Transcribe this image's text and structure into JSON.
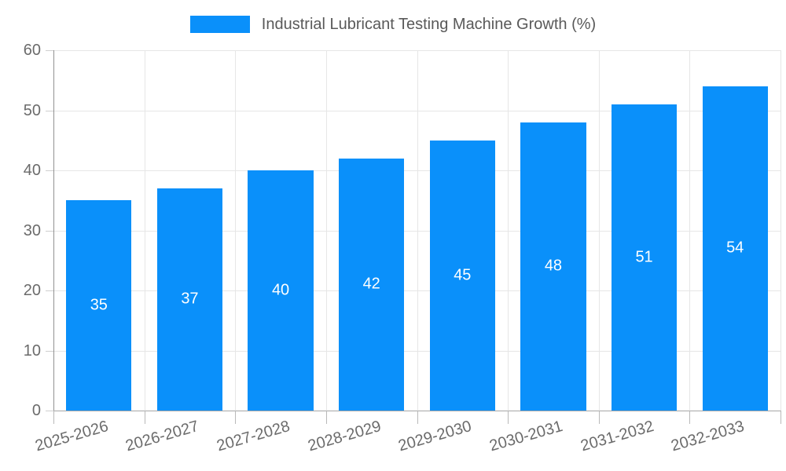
{
  "colors": {
    "bar": "#0a90fa",
    "grid": "#e6e6e6",
    "axis_border": "#9a9a9a",
    "tick_text": "#6b6b6b",
    "legend_text": "#595959",
    "value_label_text": "#ffffff",
    "background": "#ffffff"
  },
  "legend": {
    "label": "Industrial Lubricant Testing Machine Growth (%)"
  },
  "chart_data": {
    "type": "bar",
    "title": "Industrial Lubricant Testing Machine Growth (%)",
    "categories": [
      "2025-2026",
      "2026-2027",
      "2027-2028",
      "2028-2029",
      "2029-2030",
      "2030-2031",
      "2031-2032",
      "2032-2033"
    ],
    "values": [
      35,
      37,
      40,
      42,
      45,
      48,
      51,
      54
    ],
    "value_labels": [
      "35",
      "37",
      "40",
      "42",
      "45",
      "48",
      "51",
      "54"
    ],
    "xlabel": "",
    "ylabel": "",
    "ylim": [
      0,
      60
    ],
    "yticks": [
      0,
      10,
      20,
      30,
      40,
      50,
      60
    ],
    "grid": true,
    "legend_position": "top",
    "value_labels_position": "inside-center",
    "x_label_rotation_deg": 16
  }
}
